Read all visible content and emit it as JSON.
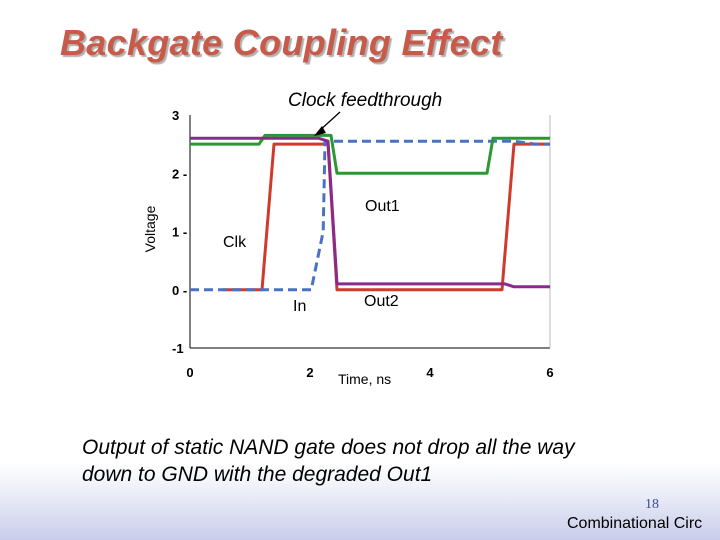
{
  "slide": {
    "title": "Backgate Coupling Effect",
    "caption_line1": "Output of static NAND gate does not drop all the way",
    "caption_line2": "down to GND with the degraded Out1",
    "page_number": "18",
    "footer": "Combinational Circ"
  },
  "chart_data": {
    "type": "line",
    "xlabel": "Time, ns",
    "ylabel": "Voltage",
    "xlim": [
      0,
      6
    ],
    "ylim": [
      -1,
      3
    ],
    "x_ticks": [
      {
        "value": 0,
        "label": "0"
      },
      {
        "value": 2,
        "label": "2"
      },
      {
        "value": 4,
        "label": "4"
      },
      {
        "value": 6,
        "label": "6"
      }
    ],
    "y_ticks": [
      {
        "value": 3,
        "label": "3"
      },
      {
        "value": 2,
        "label": "2 -"
      },
      {
        "value": 1,
        "label": "1 -"
      },
      {
        "value": 0,
        "label": "0 -"
      },
      {
        "value": -1,
        "label": "-1"
      }
    ],
    "series": [
      {
        "name": "Clk",
        "color": "#d03a2a",
        "dash": false,
        "points": [
          [
            0.55,
            0
          ],
          [
            1.2,
            0
          ],
          [
            1.4,
            2.5
          ],
          [
            2.3,
            2.5
          ],
          [
            2.45,
            0
          ],
          [
            5.2,
            0
          ],
          [
            5.4,
            2.5
          ],
          [
            6,
            2.5
          ]
        ]
      },
      {
        "name": "In",
        "color": "#4a72c4",
        "dash": true,
        "points": [
          [
            0,
            0
          ],
          [
            1.05,
            0
          ],
          [
            1.1,
            0
          ],
          [
            2.02,
            0
          ],
          [
            2.22,
            1.0
          ],
          [
            2.25,
            2.55
          ],
          [
            2.3,
            2.55
          ],
          [
            5.4,
            2.55
          ],
          [
            5.75,
            2.5
          ],
          [
            6,
            2.5
          ]
        ]
      },
      {
        "name": "Out1",
        "color": "#2a9a30",
        "dash": false,
        "points": [
          [
            0,
            2.5
          ],
          [
            1.15,
            2.5
          ],
          [
            1.25,
            2.65
          ],
          [
            2.35,
            2.65
          ],
          [
            2.45,
            2.0
          ],
          [
            4.95,
            2.0
          ],
          [
            5.05,
            2.6
          ],
          [
            6,
            2.6
          ]
        ]
      },
      {
        "name": "Out2",
        "color": "#8a2a8a",
        "dash": false,
        "points": [
          [
            0,
            2.6
          ],
          [
            2.15,
            2.6
          ],
          [
            2.3,
            2.55
          ],
          [
            2.45,
            0.1
          ],
          [
            5.25,
            0.1
          ],
          [
            5.4,
            0.05
          ],
          [
            6,
            0.05
          ]
        ]
      }
    ],
    "annotations": {
      "clock_feedthrough": "Clock feedthrough",
      "out1": "Out1",
      "clk": "Clk",
      "in": "In",
      "out2": "Out2"
    }
  }
}
